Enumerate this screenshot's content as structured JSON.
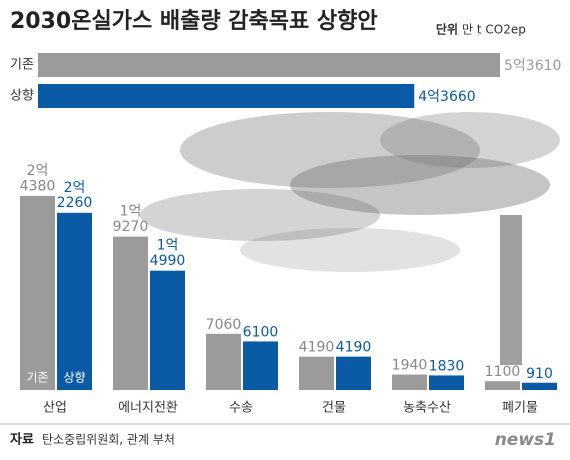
{
  "header": {
    "title": "2030온실가스 배출량 감축목표 상향안",
    "unit_label": "단위",
    "unit": "만 t CO2ep"
  },
  "chart_data": [
    {
      "type": "hbar",
      "categories": [
        "기존",
        "상향"
      ],
      "values": [
        53610,
        43660
      ],
      "value_labels": [
        "5억3610",
        "4억3660"
      ],
      "colors": [
        "#9b9b9b",
        "#0a5aa5"
      ],
      "xlim": [
        0,
        53610
      ]
    },
    {
      "type": "bar",
      "categories": [
        "산업",
        "에너지전환",
        "수송",
        "건물",
        "농축수산",
        "폐기물"
      ],
      "ylim": [
        0,
        25000
      ],
      "series": [
        {
          "name": "기존",
          "color": "#9b9b9b",
          "values": [
            24380,
            19270,
            7060,
            4190,
            1940,
            1100
          ],
          "value_labels": [
            "2억\n4380",
            "1억\n9270",
            "7060",
            "4190",
            "1940",
            "1100"
          ]
        },
        {
          "name": "상향",
          "color": "#0a5aa5",
          "values": [
            22260,
            14990,
            6100,
            4190,
            1830,
            910
          ],
          "value_labels": [
            "2억\n2260",
            "1억\n4990",
            "6100",
            "4190",
            "1830",
            "910"
          ]
        }
      ]
    }
  ],
  "footer": {
    "source_label": "자료",
    "source": "탄소중립위원회, 관계 부처",
    "logo": "news1"
  }
}
